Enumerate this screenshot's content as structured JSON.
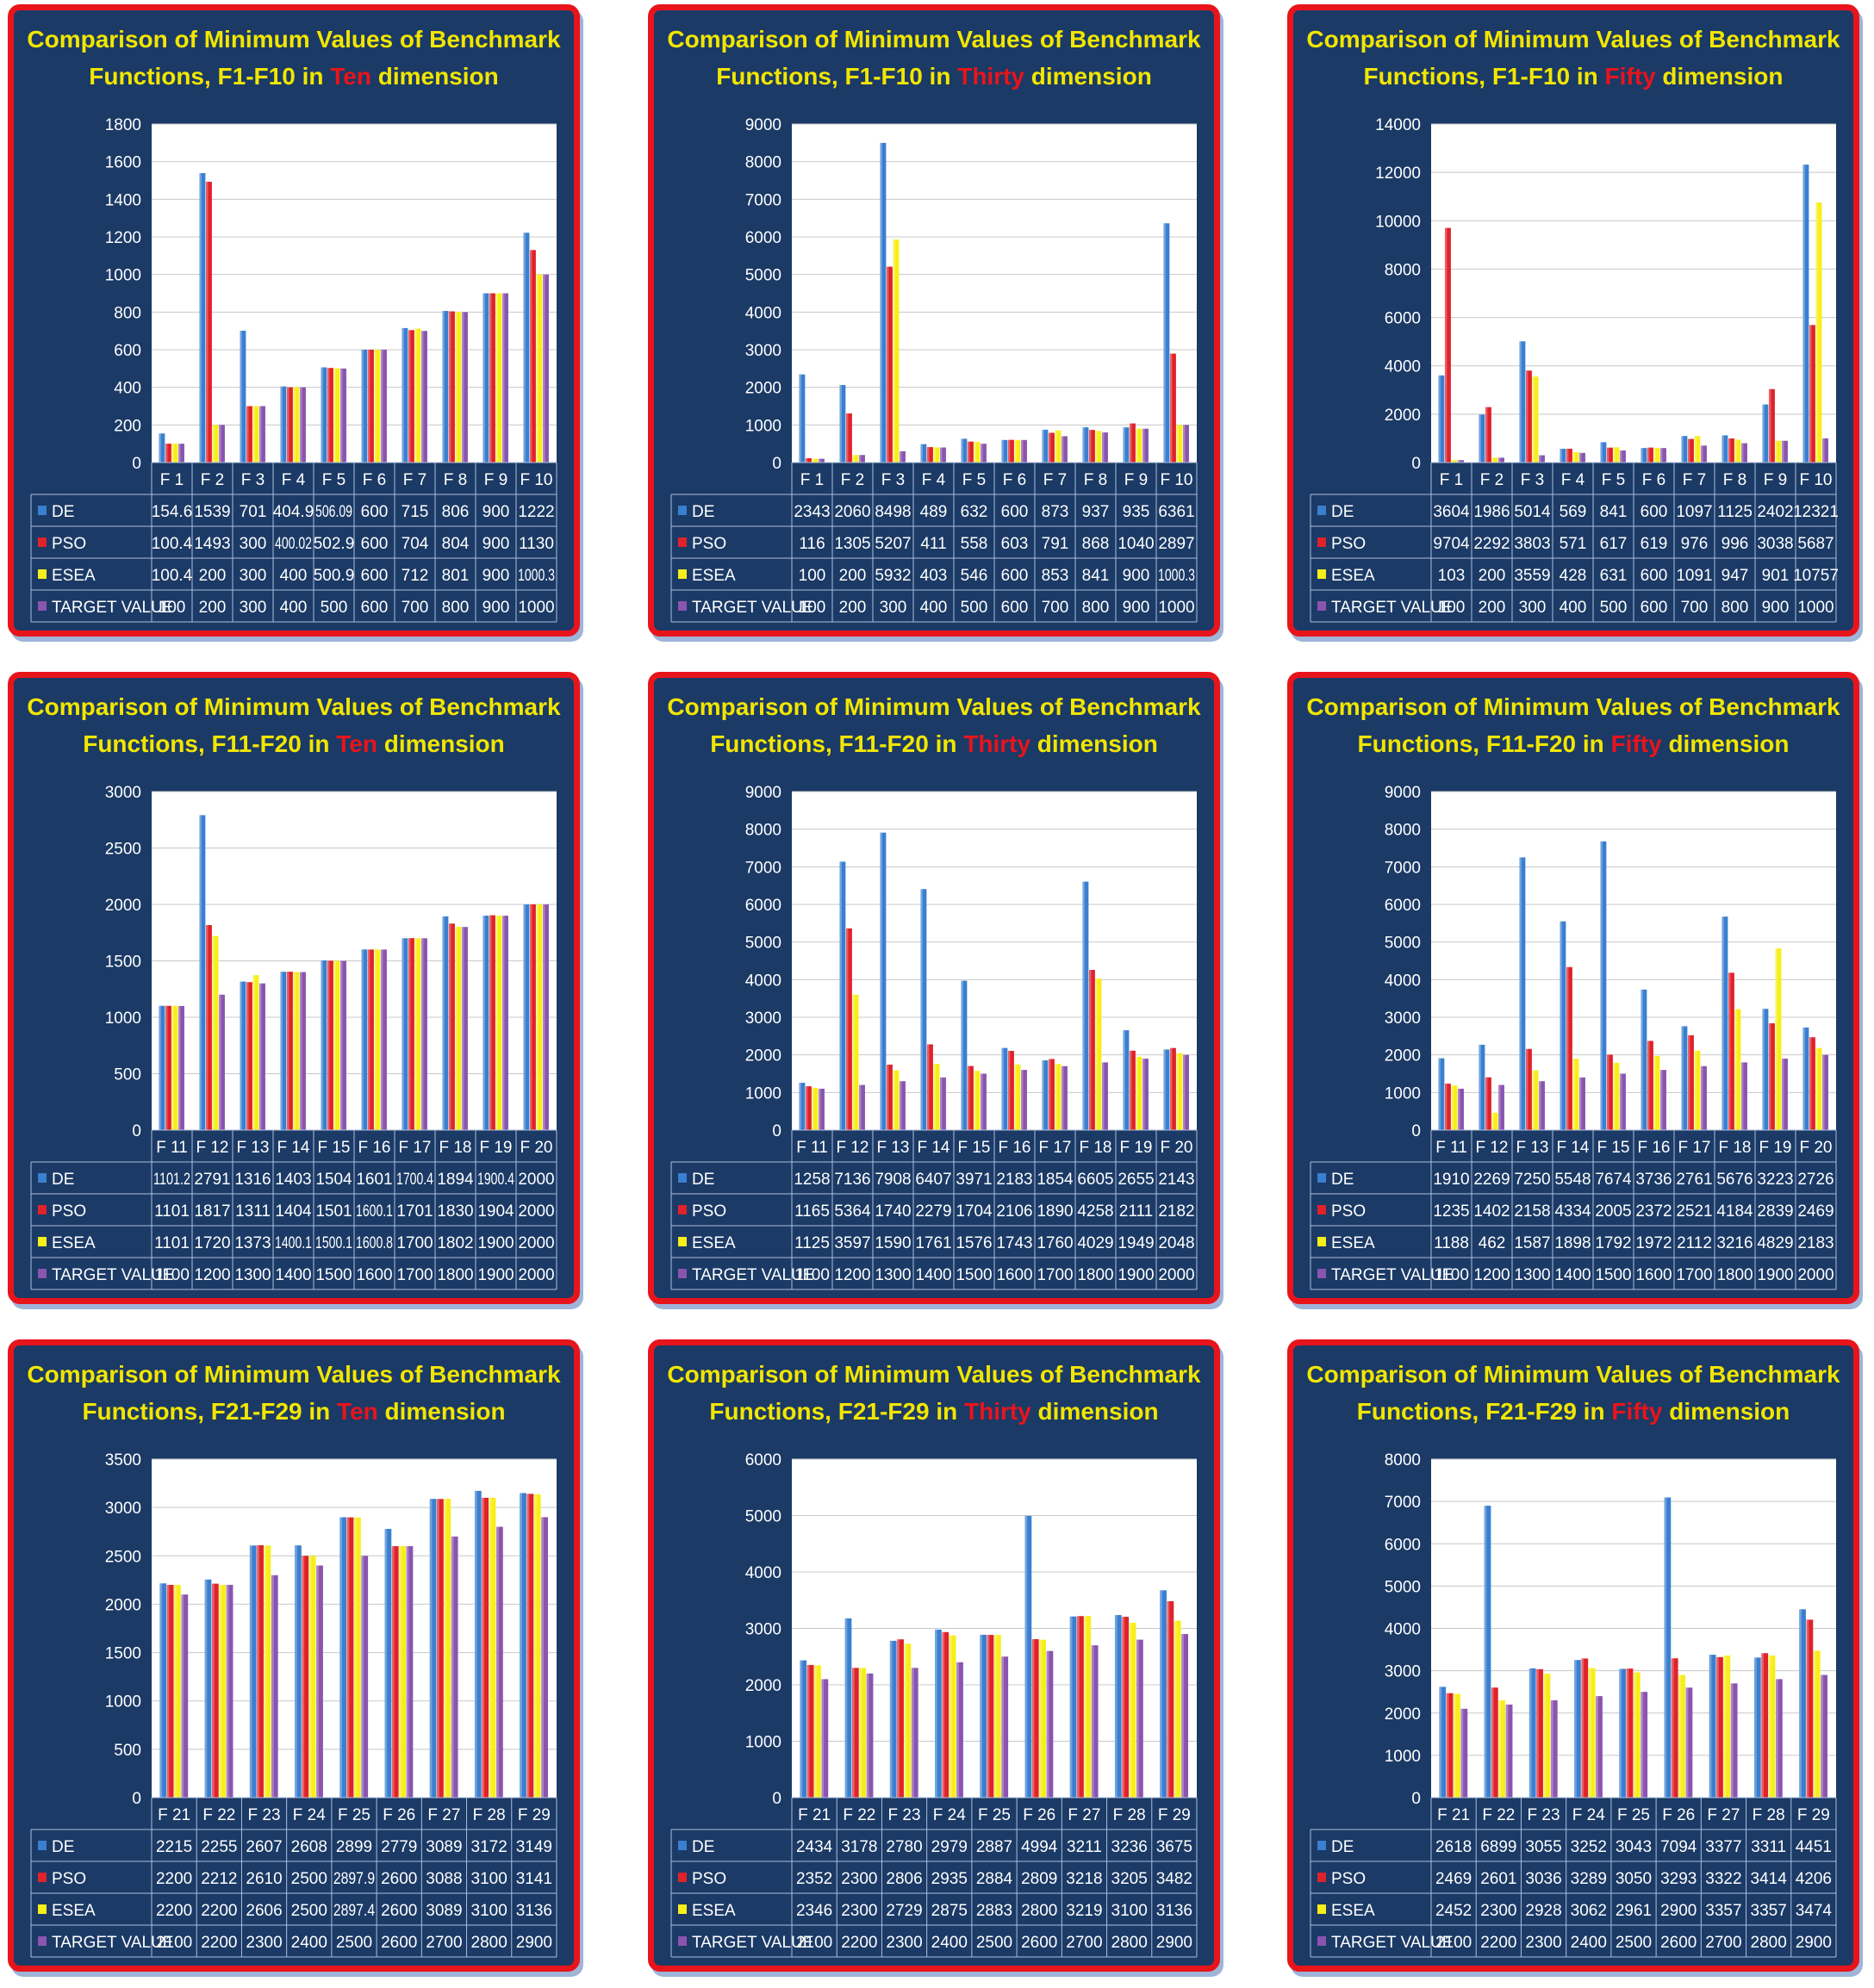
{
  "colors": {
    "DE": "#3a7fd0",
    "PSO": "#e0222a",
    "ESEA": "#f7ee1a",
    "TARGET VALUE": "#8a54b0",
    "title": "#f2e600",
    "highlight": "#e8141b"
  },
  "chart_data": [
    {
      "type": "bar",
      "title_pre": "Comparison of Minimum Values  of Benchmark",
      "title_line2_pre": "Functions, F1-F10 in ",
      "title_highlight": "Ten",
      "title_post": " dimension",
      "categories": [
        "F 1",
        "F 2",
        "F 3",
        "F 4",
        "F 5",
        "F 6",
        "F 7",
        "F 8",
        "F 9",
        "F 10"
      ],
      "ylim": [
        0,
        1800
      ],
      "yticks": [
        0,
        200,
        400,
        600,
        800,
        1000,
        1200,
        1400,
        1600,
        1800
      ],
      "series": [
        {
          "name": "DE",
          "values": [
            154.6,
            1539,
            701,
            404.9,
            506.09,
            600,
            715,
            806,
            900,
            1222
          ]
        },
        {
          "name": "PSO",
          "values": [
            100.4,
            1493,
            300,
            400.02,
            502.9,
            600,
            704,
            804,
            900,
            1130
          ]
        },
        {
          "name": "ESEA",
          "values": [
            100.4,
            200,
            300,
            400,
            500.9,
            600,
            712,
            801,
            900,
            1000.3
          ]
        },
        {
          "name": "TARGET VALUE",
          "values": [
            100,
            200,
            300,
            400,
            500,
            600,
            700,
            800,
            900,
            1000
          ]
        }
      ]
    },
    {
      "type": "bar",
      "title_pre": "Comparison of Minimum Values  of Benchmark",
      "title_line2_pre": "Functions, F1-F10 in ",
      "title_highlight": "Thirty",
      "title_post": " dimension",
      "categories": [
        "F 1",
        "F 2",
        "F 3",
        "F 4",
        "F 5",
        "F 6",
        "F 7",
        "F 8",
        "F 9",
        "F 10"
      ],
      "ylim": [
        0,
        9000
      ],
      "yticks": [
        0,
        1000,
        2000,
        3000,
        4000,
        5000,
        6000,
        7000,
        8000,
        9000
      ],
      "series": [
        {
          "name": "DE",
          "values": [
            2343,
            2060,
            8498,
            489,
            632,
            600,
            873,
            937,
            935,
            6361
          ]
        },
        {
          "name": "PSO",
          "values": [
            116,
            1305,
            5207,
            411,
            558,
            603,
            791,
            868,
            1040,
            2897
          ]
        },
        {
          "name": "ESEA",
          "values": [
            100,
            200,
            5932,
            403,
            546,
            600,
            853,
            841,
            900,
            1000.3
          ]
        },
        {
          "name": "TARGET VALUE",
          "values": [
            100,
            200,
            300,
            400,
            500,
            600,
            700,
            800,
            900,
            1000
          ]
        }
      ]
    },
    {
      "type": "bar",
      "title_pre": "Comparison of Minimum Values  of Benchmark",
      "title_line2_pre": "Functions, F1-F10 in ",
      "title_highlight": "Fifty",
      "title_post": " dimension",
      "categories": [
        "F 1",
        "F 2",
        "F 3",
        "F 4",
        "F 5",
        "F 6",
        "F 7",
        "F 8",
        "F 9",
        "F 10"
      ],
      "ylim": [
        0,
        14000
      ],
      "yticks": [
        0,
        2000,
        4000,
        6000,
        8000,
        10000,
        12000,
        14000
      ],
      "series": [
        {
          "name": "DE",
          "values": [
            3604,
            1986,
            5014,
            569,
            841,
            600,
            1097,
            1125,
            2402,
            12321
          ]
        },
        {
          "name": "PSO",
          "values": [
            9704,
            2292,
            3803,
            571,
            617,
            619,
            976,
            996,
            3038,
            5687
          ]
        },
        {
          "name": "ESEA",
          "values": [
            103,
            200,
            3559,
            428,
            631,
            600,
            1091,
            947,
            901,
            10757
          ]
        },
        {
          "name": "TARGET VALUE",
          "values": [
            100,
            200,
            300,
            400,
            500,
            600,
            700,
            800,
            900,
            1000
          ]
        }
      ]
    },
    {
      "type": "bar",
      "title_pre": "Comparison of Minimum Values  of Benchmark",
      "title_line2_pre": "Functions, F11-F20 in ",
      "title_highlight": "Ten",
      "title_post": " dimension",
      "categories": [
        "F 11",
        "F 12",
        "F 13",
        "F 14",
        "F 15",
        "F 16",
        "F 17",
        "F 18",
        "F 19",
        "F 20"
      ],
      "ylim": [
        0,
        3000
      ],
      "yticks": [
        0,
        500,
        1000,
        1500,
        2000,
        2500,
        3000
      ],
      "series": [
        {
          "name": "DE",
          "values": [
            1101.2,
            2791,
            1316,
            1403,
            1504,
            1601,
            1700.4,
            1894,
            1900.4,
            2000
          ]
        },
        {
          "name": "PSO",
          "values": [
            1101,
            1817,
            1311,
            1404,
            1501,
            1600.1,
            1701,
            1830,
            1904,
            2000
          ]
        },
        {
          "name": "ESEA",
          "values": [
            1101,
            1720,
            1373,
            1400.1,
            1500.1,
            1600.8,
            1700,
            1802,
            1900,
            2000
          ]
        },
        {
          "name": "TARGET VALUE",
          "values": [
            1100,
            1200,
            1300,
            1400,
            1500,
            1600,
            1700,
            1800,
            1900,
            2000
          ]
        }
      ]
    },
    {
      "type": "bar",
      "title_pre": "Comparison of Minimum Values  of Benchmark",
      "title_line2_pre": "Functions, F11-F20 in ",
      "title_highlight": "Thirty",
      "title_post": " dimension",
      "categories": [
        "F 11",
        "F 12",
        "F 13",
        "F 14",
        "F 15",
        "F 16",
        "F 17",
        "F 18",
        "F 19",
        "F 20"
      ],
      "ylim": [
        0,
        9000
      ],
      "yticks": [
        0,
        1000,
        2000,
        3000,
        4000,
        5000,
        6000,
        7000,
        8000,
        9000
      ],
      "series": [
        {
          "name": "DE",
          "values": [
            1258,
            7136,
            7908,
            6407,
            3971,
            2183,
            1854,
            6605,
            2655,
            2143
          ]
        },
        {
          "name": "PSO",
          "values": [
            1165,
            5364,
            1740,
            2279,
            1704,
            2106,
            1890,
            4258,
            2111,
            2182
          ]
        },
        {
          "name": "ESEA",
          "values": [
            1125,
            3597,
            1590,
            1761,
            1576,
            1743,
            1760,
            4029,
            1949,
            2048
          ]
        },
        {
          "name": "TARGET VALUE",
          "values": [
            1100,
            1200,
            1300,
            1400,
            1500,
            1600,
            1700,
            1800,
            1900,
            2000
          ]
        }
      ]
    },
    {
      "type": "bar",
      "title_pre": "Comparison of Minimum Values  of Benchmark",
      "title_line2_pre": "Functions, F11-F20 in ",
      "title_highlight": "Fifty",
      "title_post": " dimension",
      "categories": [
        "F 11",
        "F 12",
        "F 13",
        "F 14",
        "F 15",
        "F 16",
        "F 17",
        "F 18",
        "F 19",
        "F 20"
      ],
      "ylim": [
        0,
        9000
      ],
      "yticks": [
        0,
        1000,
        2000,
        3000,
        4000,
        5000,
        6000,
        7000,
        8000,
        9000
      ],
      "series": [
        {
          "name": "DE",
          "values": [
            1910,
            2269,
            7250,
            5548,
            7674,
            3736,
            2761,
            5676,
            3223,
            2726
          ]
        },
        {
          "name": "PSO",
          "values": [
            1235,
            1402,
            2158,
            4334,
            2005,
            2372,
            2521,
            4184,
            2839,
            2469
          ]
        },
        {
          "name": "ESEA",
          "values": [
            1188,
            462,
            1587,
            1898,
            1792,
            1972,
            2112,
            3216,
            4829,
            2183
          ]
        },
        {
          "name": "TARGET VALUE",
          "values": [
            1100,
            1200,
            1300,
            1400,
            1500,
            1600,
            1700,
            1800,
            1900,
            2000
          ]
        }
      ]
    },
    {
      "type": "bar",
      "title_pre": "Comparison of Minimum Values  of Benchmark",
      "title_line2_pre": "Functions, F21-F29 in ",
      "title_highlight": "Ten",
      "title_post": " dimension",
      "categories": [
        "F 21",
        "F 22",
        "F 23",
        "F 24",
        "F 25",
        "F 26",
        "F 27",
        "F 28",
        "F 29"
      ],
      "ylim": [
        0,
        3500
      ],
      "yticks": [
        0,
        500,
        1000,
        1500,
        2000,
        2500,
        3000,
        3500
      ],
      "series": [
        {
          "name": "DE",
          "values": [
            2215,
            2255,
            2607,
            2608,
            2899,
            2779,
            3089,
            3172,
            3149
          ]
        },
        {
          "name": "PSO",
          "values": [
            2200,
            2212,
            2610,
            2500,
            2897.9,
            2600,
            3088,
            3100,
            3141
          ]
        },
        {
          "name": "ESEA",
          "values": [
            2200,
            2200,
            2606,
            2500,
            2897.4,
            2600,
            3089,
            3100,
            3136
          ]
        },
        {
          "name": "TARGET VALUE",
          "values": [
            2100,
            2200,
            2300,
            2400,
            2500,
            2600,
            2700,
            2800,
            2900
          ]
        }
      ]
    },
    {
      "type": "bar",
      "title_pre": "Comparison of Minimum Values  of Benchmark",
      "title_line2_pre": "Functions, F21-F29 in ",
      "title_highlight": "Thirty",
      "title_post": " dimension",
      "categories": [
        "F 21",
        "F 22",
        "F 23",
        "F 24",
        "F 25",
        "F 26",
        "F 27",
        "F 28",
        "F 29"
      ],
      "ylim": [
        0,
        6000
      ],
      "yticks": [
        0,
        1000,
        2000,
        3000,
        4000,
        5000,
        6000
      ],
      "series": [
        {
          "name": "DE",
          "values": [
            2434,
            3178,
            2780,
            2979,
            2887,
            4994,
            3211,
            3236,
            3675
          ]
        },
        {
          "name": "PSO",
          "values": [
            2352,
            2300,
            2806,
            2935,
            2884,
            2809,
            3218,
            3205,
            3482
          ]
        },
        {
          "name": "ESEA",
          "values": [
            2346,
            2300,
            2729,
            2875,
            2883,
            2800,
            3219,
            3100,
            3136
          ]
        },
        {
          "name": "TARGET VALUE",
          "values": [
            2100,
            2200,
            2300,
            2400,
            2500,
            2600,
            2700,
            2800,
            2900
          ]
        }
      ]
    },
    {
      "type": "bar",
      "title_pre": "Comparison of Minimum Values  of Benchmark",
      "title_line2_pre": "Functions, F21-F29 in ",
      "title_highlight": "Fifty",
      "title_post": " dimension",
      "categories": [
        "F 21",
        "F 22",
        "F 23",
        "F 24",
        "F 25",
        "F 26",
        "F 27",
        "F 28",
        "F 29"
      ],
      "ylim": [
        0,
        8000
      ],
      "yticks": [
        0,
        1000,
        2000,
        3000,
        4000,
        5000,
        6000,
        7000,
        8000
      ],
      "series": [
        {
          "name": "DE",
          "values": [
            2618,
            6899,
            3055,
            3252,
            3043,
            7094,
            3377,
            3311,
            4451
          ]
        },
        {
          "name": "PSO",
          "values": [
            2469,
            2601,
            3036,
            3289,
            3050,
            3293,
            3322,
            3414,
            4206
          ]
        },
        {
          "name": "ESEA",
          "values": [
            2452,
            2300,
            2928,
            3062,
            2961,
            2900,
            3357,
            3357,
            3474
          ]
        },
        {
          "name": "TARGET VALUE",
          "values": [
            2100,
            2200,
            2300,
            2400,
            2500,
            2600,
            2700,
            2800,
            2900
          ]
        }
      ]
    }
  ]
}
